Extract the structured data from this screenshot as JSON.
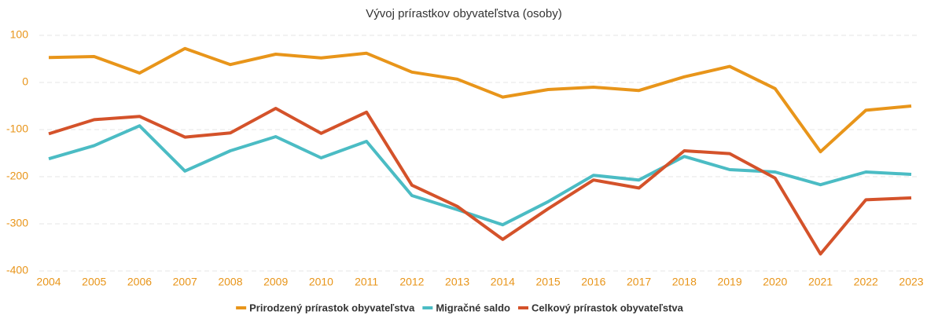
{
  "chart_data": {
    "type": "line",
    "title": "Vývoj prírastkov obyvateľstva (osoby)",
    "categories": [
      "2004",
      "2005",
      "2006",
      "2007",
      "2008",
      "2009",
      "2010",
      "2011",
      "2012",
      "2013",
      "2014",
      "2015",
      "2016",
      "2017",
      "2018",
      "2019",
      "2020",
      "2021",
      "2022",
      "2023"
    ],
    "series": [
      {
        "name": "Prirodzený prírastok obyvateľstva",
        "color": "#e8951a",
        "values": [
          53,
          55,
          20,
          72,
          38,
          60,
          52,
          62,
          22,
          7,
          -31,
          -15,
          -10,
          -17,
          12,
          34,
          -13,
          -147,
          -59,
          -50
        ]
      },
      {
        "name": "Migračné saldo",
        "color": "#4bbcc4",
        "values": [
          -162,
          -134,
          -92,
          -188,
          -145,
          -115,
          -160,
          -125,
          -240,
          -270,
          -302,
          -253,
          -197,
          -207,
          -157,
          -185,
          -190,
          -217,
          -190,
          -195
        ]
      },
      {
        "name": "Celkový prírastok obyvateľstva",
        "color": "#d4522a",
        "values": [
          -109,
          -79,
          -72,
          -116,
          -107,
          -55,
          -108,
          -63,
          -218,
          -263,
          -333,
          -268,
          -207,
          -224,
          -145,
          -151,
          -203,
          -364,
          -249,
          -245
        ]
      }
    ],
    "ylim": [
      -400,
      100
    ],
    "yticks": [
      -400,
      -300,
      -200,
      -100,
      0,
      100
    ],
    "grid": true,
    "legend": "bottom"
  }
}
